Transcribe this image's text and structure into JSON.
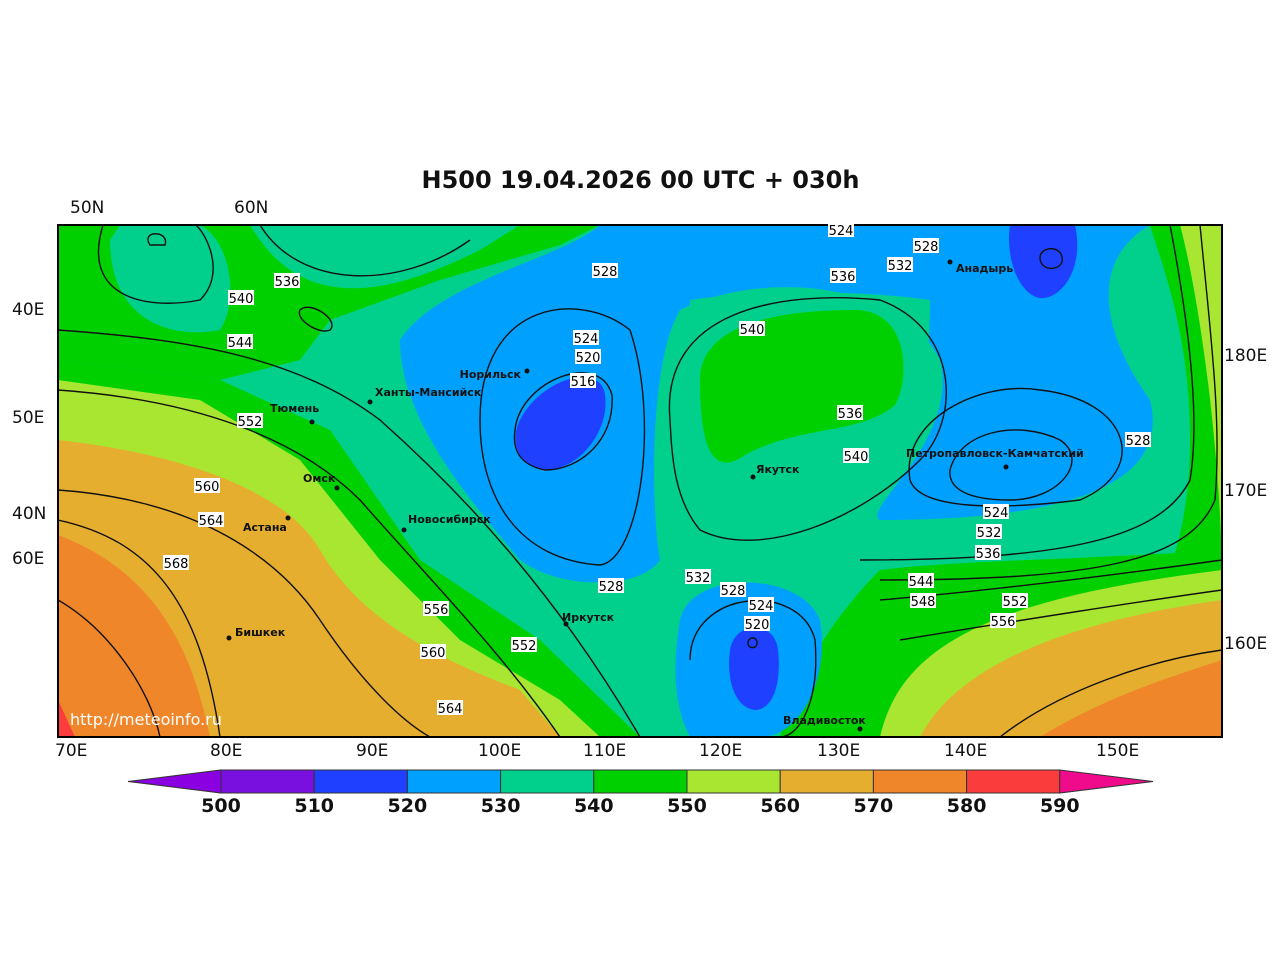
{
  "title": "H500  19.04.2026 00 UTC + 030h",
  "watermark": "http://meteoinfo.ru",
  "axis_labels": {
    "top": [
      "50N",
      "60N"
    ],
    "left": [
      "40E",
      "50E",
      "40N",
      "60E"
    ],
    "right": [
      "180E",
      "170E",
      "160E"
    ],
    "bottom": [
      "70E",
      "80E",
      "90E",
      "100E",
      "110E",
      "120E",
      "130E",
      "140E",
      "150E"
    ]
  },
  "colorbar": {
    "ticks": [
      "500",
      "510",
      "520",
      "530",
      "540",
      "550",
      "560",
      "570",
      "580",
      "590"
    ],
    "colors": [
      "#8a00e0",
      "#7a10e0",
      "#2040ff",
      "#00a0ff",
      "#00d08c",
      "#00d000",
      "#a8e632",
      "#e6ae2e",
      "#f0862a",
      "#fa3c3c",
      "#f00a8c"
    ]
  },
  "contour_labels": [
    "536",
    "540",
    "544",
    "552",
    "560",
    "564",
    "568",
    "528",
    "524",
    "520",
    "516",
    "556",
    "560",
    "552",
    "564",
    "528",
    "532",
    "528",
    "524",
    "520",
    "540",
    "536",
    "540",
    "536",
    "528",
    "532",
    "524",
    "528",
    "524",
    "532",
    "536",
    "544",
    "548",
    "552",
    "556"
  ],
  "cities": [
    "Норильск",
    "Ханты-Мансийск",
    "Тюмень",
    "Омск",
    "Астана",
    "Новосибирск",
    "Бишкек",
    "Иркутск",
    "Якутск",
    "Анадырь",
    "Петропавловск-Камчатский",
    "Владивосток"
  ]
}
